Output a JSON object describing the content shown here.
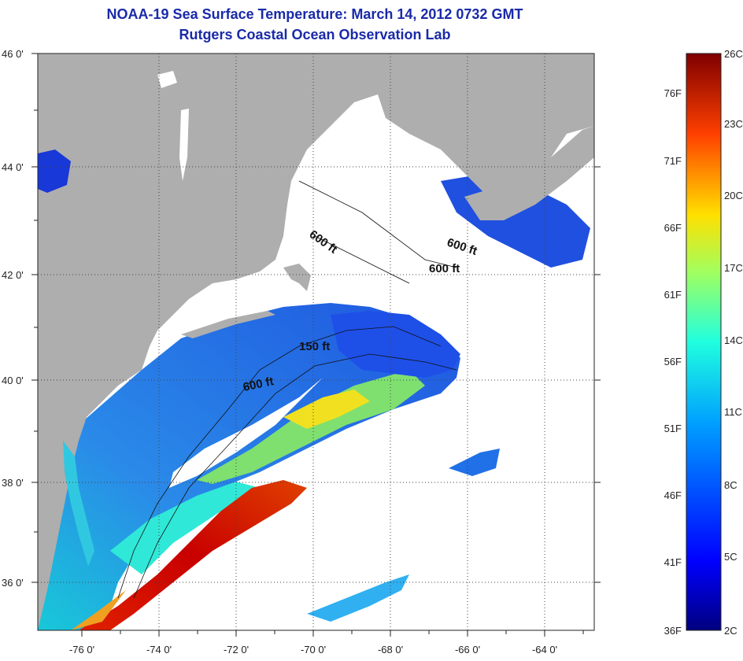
{
  "title": "NOAA-19 Sea Surface Temperature:  March 14, 2012 0732 GMT",
  "subtitle": "Rutgers Coastal Ocean Observation Lab",
  "lat_ticks": [
    "46 0'",
    "44 0'",
    "42 0'",
    "40 0'",
    "38 0'",
    "36 0'"
  ],
  "lon_ticks": [
    "-76 0'",
    "-74 0'",
    "-72 0'",
    "-70 0'",
    "-68 0'",
    "-66 0'",
    "-64 0'"
  ],
  "contour_labels": [
    "600 ft",
    "600 ft",
    "600 ft",
    "150 ft",
    "600 ft"
  ],
  "colorbar": {
    "fahrenheit": [
      "76F",
      "71F",
      "66F",
      "61F",
      "56F",
      "51F",
      "46F",
      "41F",
      "36F"
    ],
    "celsius": [
      "26C",
      "23C",
      "20C",
      "17C",
      "14C",
      "11C",
      "8C",
      "5C",
      "2C"
    ]
  },
  "colors": {
    "land": "#aeaeae",
    "cloud": "#ffffff",
    "title": "#1a2aa8"
  }
}
